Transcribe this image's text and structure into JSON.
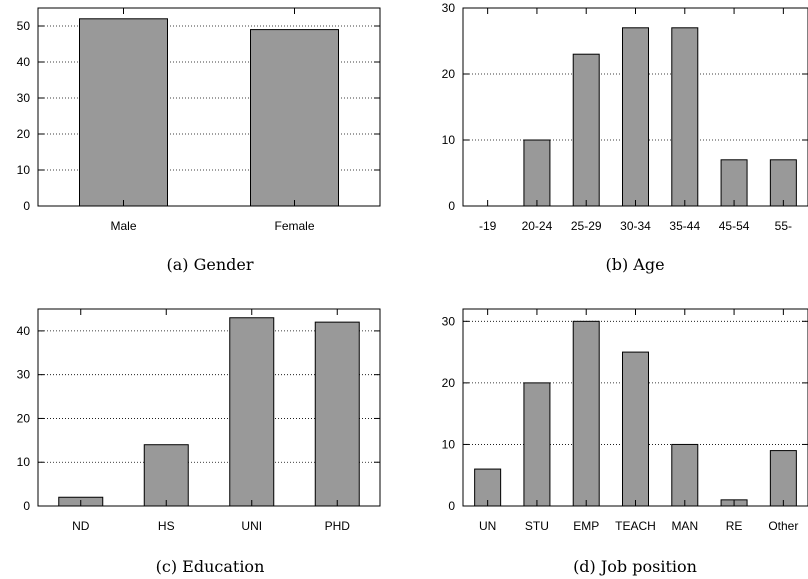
{
  "chart_data": [
    {
      "type": "bar",
      "caption": "(a) Gender",
      "categories": [
        "Male",
        "Female"
      ],
      "values": [
        52,
        49
      ],
      "ylim": [
        0,
        55
      ],
      "yticks": [
        0,
        10,
        20,
        30,
        40,
        50
      ],
      "grid": true,
      "bar_color": "#999999"
    },
    {
      "type": "bar",
      "caption": "(b) Age",
      "categories": [
        "-19",
        "20-24",
        "25-29",
        "30-34",
        "35-44",
        "45-54",
        "55-"
      ],
      "values": [
        0,
        10,
        23,
        27,
        27,
        7,
        7
      ],
      "ylim": [
        0,
        30
      ],
      "yticks": [
        0,
        10,
        20,
        30
      ],
      "grid": true,
      "bar_color": "#999999"
    },
    {
      "type": "bar",
      "caption": "(c) Education",
      "categories": [
        "ND",
        "HS",
        "UNI",
        "PHD"
      ],
      "values": [
        2,
        14,
        43,
        42
      ],
      "ylim": [
        0,
        45
      ],
      "yticks": [
        0,
        10,
        20,
        30,
        40
      ],
      "grid": true,
      "bar_color": "#999999"
    },
    {
      "type": "bar",
      "caption": "(d) Job position",
      "categories": [
        "UN",
        "STU",
        "EMP",
        "TEACH",
        "MAN",
        "RE",
        "Other"
      ],
      "values": [
        6,
        20,
        30,
        25,
        10,
        1,
        9
      ],
      "ylim": [
        0,
        32
      ],
      "yticks": [
        0,
        10,
        20,
        30
      ],
      "grid": true,
      "bar_color": "#999999"
    }
  ]
}
